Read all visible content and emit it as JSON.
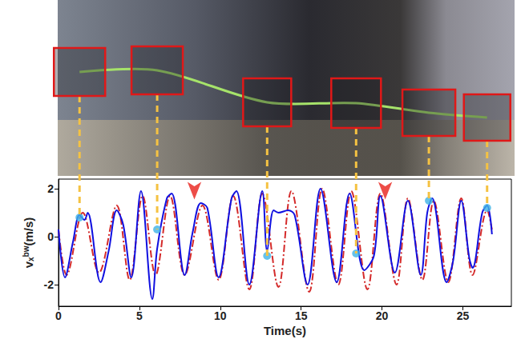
{
  "chart_data": {
    "type": "line",
    "xlabel": "Time(s)",
    "ylabel": {
      "base": "v",
      "sub": "x",
      "sup": "bw",
      "unit": "(m/s)"
    },
    "xlim": [
      0,
      28
    ],
    "ylim": [
      -2.9,
      2.4
    ],
    "xticks": [
      0,
      5,
      10,
      15,
      20,
      25
    ],
    "yticks": [
      -2,
      0,
      2
    ],
    "grid": false,
    "series": [
      {
        "color": "#d42a2a",
        "line_style": "dashdot",
        "x": [
          0,
          0.5,
          1.5,
          2.5,
          3.6,
          4.4,
          5.2,
          6.0,
          6.9,
          7.8,
          8.9,
          9.9,
          10.8,
          11.8,
          12.6,
          13.6,
          14.4,
          15.5,
          16.3,
          17.3,
          18.1,
          19.1,
          19.9,
          20.9,
          21.6,
          22.5,
          23.2,
          24.1,
          24.9,
          25.6,
          26.5,
          26.8
        ],
        "values": [
          0.3,
          -1.6,
          1.0,
          -1.5,
          1.3,
          -1.8,
          1.7,
          -1.6,
          1.7,
          -1.6,
          1.3,
          -1.8,
          1.7,
          -2.2,
          1.8,
          -2.1,
          1.9,
          -2.3,
          2.0,
          -2.0,
          1.9,
          -2.2,
          1.8,
          -2.0,
          1.6,
          -1.8,
          1.5,
          -1.9,
          1.6,
          -1.6,
          1.1,
          0.3
        ]
      },
      {
        "color": "#1010e0",
        "line_style": "solid",
        "x": [
          0,
          0.4,
          0.9,
          1.3,
          1.6,
          1.8,
          2.6,
          3.1,
          3.6,
          4.0,
          4.5,
          5.1,
          5.8,
          6.1,
          6.7,
          7.0,
          7.8,
          8.3,
          8.8,
          9.2,
          9.9,
          10.7,
          11.0,
          11.8,
          12.6,
          12.9,
          13.3,
          13.6,
          14.2,
          14.6,
          15.4,
          16.2,
          17.2,
          18.0,
          18.9,
          19.5,
          19.9,
          20.8,
          21.6,
          22.4,
          22.8,
          23.1,
          24.0,
          24.4,
          24.9,
          25.4,
          25.6,
          26.2,
          26.5,
          26.8
        ],
        "values": [
          0.3,
          -1.7,
          -0.2,
          0.9,
          0.7,
          1.0,
          -1.9,
          -0.6,
          1.1,
          0.5,
          -1.7,
          1.9,
          -2.6,
          -0.5,
          1.6,
          1.8,
          -1.6,
          0.2,
          1.4,
          1.2,
          -1.7,
          1.6,
          1.9,
          -2.0,
          1.9,
          -0.6,
          1.1,
          1.0,
          1.1,
          0.9,
          -2.0,
          2.0,
          -1.9,
          1.8,
          -1.4,
          -0.8,
          1.7,
          -1.5,
          1.5,
          -1.6,
          1.0,
          1.6,
          -1.9,
          -1.0,
          1.5,
          -0.9,
          -1.3,
          1.0,
          1.3,
          0.1
        ]
      }
    ],
    "markers": {
      "color": "#3fb3e6",
      "x": [
        1.3,
        6.1,
        12.9,
        18.4,
        22.9,
        26.5
      ],
      "y": [
        0.8,
        0.3,
        -0.8,
        -0.7,
        1.5,
        1.2
      ]
    },
    "arrows": {
      "color": "#e8201a",
      "x": [
        8.4,
        20.2
      ],
      "y": [
        1.55,
        1.55
      ]
    }
  }
}
